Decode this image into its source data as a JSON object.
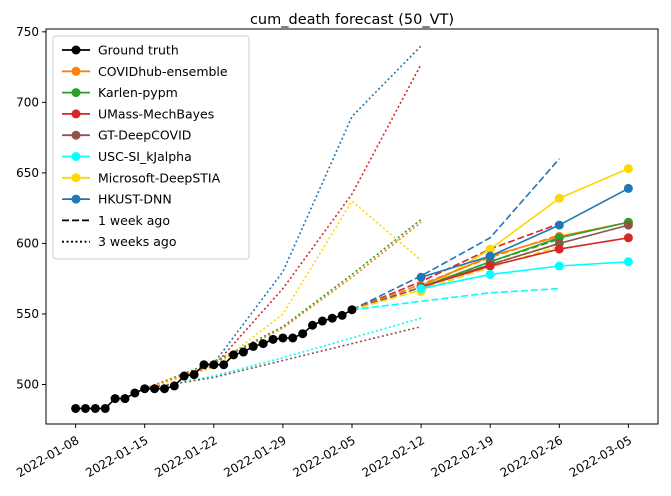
{
  "chart_data": {
    "type": "line",
    "title": "cum_death forecast (50_VT)",
    "xlabel": "",
    "ylabel": "",
    "x_ticks": [
      "2022-01-08",
      "2022-01-15",
      "2022-01-22",
      "2022-01-29",
      "2022-02-05",
      "2022-02-12",
      "2022-02-19",
      "2022-02-26",
      "2022-03-05"
    ],
    "y_ticks": [
      500,
      550,
      600,
      650,
      700,
      750
    ],
    "xlim": [
      "2022-01-05",
      "2022-03-08"
    ],
    "ylim": [
      472,
      752
    ],
    "grid": false,
    "legend_position": "top-left",
    "legend": [
      {
        "label": "Ground truth",
        "color": "#000000",
        "style": "solid",
        "marker": true
      },
      {
        "label": "COVIDhub-ensemble",
        "color": "#ff7f0e",
        "style": "solid",
        "marker": true
      },
      {
        "label": "Karlen-pypm",
        "color": "#2ca02c",
        "style": "solid",
        "marker": true
      },
      {
        "label": "UMass-MechBayes",
        "color": "#d62728",
        "style": "solid",
        "marker": true
      },
      {
        "label": "GT-DeepCOVID",
        "color": "#8c564b",
        "style": "solid",
        "marker": true
      },
      {
        "label": "USC-SI_kJalpha",
        "color": "#00ffff",
        "style": "solid",
        "marker": true
      },
      {
        "label": "Microsoft-DeepSTIA",
        "color": "#ffd700",
        "style": "solid",
        "marker": true
      },
      {
        "label": "HKUST-DNN",
        "color": "#1f77b4",
        "style": "solid",
        "marker": true
      },
      {
        "label": "1 week ago",
        "color": "#000000",
        "style": "dashed",
        "marker": false
      },
      {
        "label": "3 weeks ago",
        "color": "#000000",
        "style": "dotted",
        "marker": false
      }
    ],
    "series": [
      {
        "group": "3 weeks ago",
        "model": "HKUST-DNN",
        "color": "#1f77b4",
        "style": "dotted",
        "marker": false,
        "x": [
          "2022-01-15",
          "2022-01-22",
          "2022-01-29",
          "2022-02-05",
          "2022-02-12"
        ],
        "y": [
          497,
          515,
          580,
          690,
          740
        ]
      },
      {
        "group": "3 weeks ago",
        "model": "UMass-MechBayes",
        "color": "#d62728",
        "style": "dotted",
        "marker": false,
        "x": [
          "2022-01-15",
          "2022-01-22",
          "2022-01-29",
          "2022-02-05",
          "2022-02-12"
        ],
        "y": [
          497,
          513,
          568,
          635,
          727
        ]
      },
      {
        "group": "3 weeks ago",
        "model": "Microsoft-DeepSTIA",
        "color": "#ffd700",
        "style": "dotted",
        "marker": false,
        "x": [
          "2022-01-15",
          "2022-01-22",
          "2022-01-29",
          "2022-02-05",
          "2022-02-12"
        ],
        "y": [
          497,
          512,
          550,
          630,
          588
        ]
      },
      {
        "group": "3 weeks ago",
        "model": "Karlen-pypm",
        "color": "#2ca02c",
        "style": "dotted",
        "marker": false,
        "x": [
          "2022-01-15",
          "2022-01-22",
          "2022-01-29",
          "2022-02-05",
          "2022-02-12"
        ],
        "y": [
          497,
          516,
          541,
          578,
          617
        ]
      },
      {
        "group": "3 weeks ago",
        "model": "COVIDhub-ensemble",
        "color": "#ff7f0e",
        "style": "dotted",
        "marker": false,
        "x": [
          "2022-01-15",
          "2022-01-22",
          "2022-01-29",
          "2022-02-05",
          "2022-02-12"
        ],
        "y": [
          497,
          515,
          540,
          576,
          615
        ]
      },
      {
        "group": "3 weeks ago",
        "model": "USC-SI_kJalpha",
        "color": "#00ffff",
        "style": "dotted",
        "marker": false,
        "x": [
          "2022-01-15",
          "2022-01-22",
          "2022-01-29",
          "2022-02-05",
          "2022-02-12"
        ],
        "y": [
          497,
          506,
          519,
          533,
          547
        ]
      },
      {
        "group": "3 weeks ago",
        "model": "GT-DeepCOVID",
        "color": "#8c564b",
        "style": "dotted",
        "marker": false,
        "x": [
          "2022-01-15",
          "2022-01-22",
          "2022-01-29",
          "2022-02-05",
          "2022-02-12"
        ],
        "y": [
          497,
          505,
          517,
          529,
          541
        ]
      },
      {
        "group": "1 week ago",
        "model": "HKUST-DNN",
        "color": "#1f77b4",
        "style": "dashed",
        "marker": false,
        "x": [
          "2022-02-05",
          "2022-02-12",
          "2022-02-19",
          "2022-02-26"
        ],
        "y": [
          553,
          577,
          604,
          660
        ]
      },
      {
        "group": "1 week ago",
        "model": "UMass-MechBayes",
        "color": "#d62728",
        "style": "dashed",
        "marker": false,
        "x": [
          "2022-02-05",
          "2022-02-12",
          "2022-02-19",
          "2022-02-26"
        ],
        "y": [
          553,
          573,
          596,
          614
        ]
      },
      {
        "group": "1 week ago",
        "model": "COVIDhub-ensemble",
        "color": "#ff7f0e",
        "style": "dashed",
        "marker": false,
        "x": [
          "2022-02-05",
          "2022-02-12",
          "2022-02-19",
          "2022-02-26"
        ],
        "y": [
          553,
          571,
          590,
          606
        ]
      },
      {
        "group": "1 week ago",
        "model": "Karlen-pypm",
        "color": "#2ca02c",
        "style": "dashed",
        "marker": false,
        "x": [
          "2022-02-05",
          "2022-02-12",
          "2022-02-19",
          "2022-02-26"
        ],
        "y": [
          553,
          569,
          587,
          603
        ]
      },
      {
        "group": "1 week ago",
        "model": "GT-DeepCOVID",
        "color": "#8c564b",
        "style": "dashed",
        "marker": false,
        "x": [
          "2022-02-05",
          "2022-02-12",
          "2022-02-19",
          "2022-02-26"
        ],
        "y": [
          553,
          569,
          585,
          600
        ]
      },
      {
        "group": "1 week ago",
        "model": "Microsoft-DeepSTIA",
        "color": "#ffd700",
        "style": "dashed",
        "marker": false,
        "x": [
          "2022-02-05",
          "2022-02-12",
          "2022-02-19",
          "2022-02-26"
        ],
        "y": [
          553,
          567,
          583,
          598
        ]
      },
      {
        "group": "1 week ago",
        "model": "USC-SI_kJalpha",
        "color": "#00ffff",
        "style": "dashed",
        "marker": false,
        "x": [
          "2022-02-05",
          "2022-02-12",
          "2022-02-19",
          "2022-02-26"
        ],
        "y": [
          553,
          559,
          565,
          568
        ]
      },
      {
        "group": "current",
        "model": "Microsoft-DeepSTIA",
        "color": "#ffd700",
        "style": "solid",
        "marker": true,
        "x": [
          "2022-02-12",
          "2022-02-19",
          "2022-02-26",
          "2022-03-05"
        ],
        "y": [
          566,
          596,
          632,
          653
        ]
      },
      {
        "group": "current",
        "model": "COVIDhub-ensemble",
        "color": "#ff7f0e",
        "style": "solid",
        "marker": true,
        "x": [
          "2022-02-12",
          "2022-02-19",
          "2022-02-26",
          "2022-03-05"
        ],
        "y": [
          570,
          591,
          605,
          615
        ]
      },
      {
        "group": "current",
        "model": "Karlen-pypm",
        "color": "#2ca02c",
        "style": "solid",
        "marker": true,
        "x": [
          "2022-02-12",
          "2022-02-19",
          "2022-02-26",
          "2022-03-05"
        ],
        "y": [
          569,
          587,
          604,
          615
        ]
      },
      {
        "group": "current",
        "model": "GT-DeepCOVID",
        "color": "#8c564b",
        "style": "solid",
        "marker": true,
        "x": [
          "2022-02-12",
          "2022-02-19",
          "2022-02-26",
          "2022-03-05"
        ],
        "y": [
          569,
          585,
          600,
          613
        ]
      },
      {
        "group": "current",
        "model": "UMass-MechBayes",
        "color": "#d62728",
        "style": "solid",
        "marker": true,
        "x": [
          "2022-02-12",
          "2022-02-19",
          "2022-02-26",
          "2022-03-05"
        ],
        "y": [
          569,
          584,
          596,
          604
        ]
      },
      {
        "group": "current",
        "model": "USC-SI_kJalpha",
        "color": "#00ffff",
        "style": "solid",
        "marker": true,
        "x": [
          "2022-02-12",
          "2022-02-19",
          "2022-02-26",
          "2022-03-05"
        ],
        "y": [
          568,
          578,
          584,
          587
        ]
      },
      {
        "group": "current",
        "model": "HKUST-DNN",
        "color": "#1f77b4",
        "style": "solid",
        "marker": true,
        "x": [
          "2022-02-12",
          "2022-02-19",
          "2022-02-26",
          "2022-03-05"
        ],
        "y": [
          576,
          591,
          613,
          639
        ]
      },
      {
        "group": "truth",
        "model": "Ground truth",
        "color": "#000000",
        "style": "solid",
        "marker": true,
        "x": [
          "2022-01-08",
          "2022-01-09",
          "2022-01-10",
          "2022-01-11",
          "2022-01-12",
          "2022-01-13",
          "2022-01-14",
          "2022-01-15",
          "2022-01-16",
          "2022-01-17",
          "2022-01-18",
          "2022-01-19",
          "2022-01-20",
          "2022-01-21",
          "2022-01-22",
          "2022-01-23",
          "2022-01-24",
          "2022-01-25",
          "2022-01-26",
          "2022-01-27",
          "2022-01-28",
          "2022-01-29",
          "2022-01-30",
          "2022-01-31",
          "2022-02-01",
          "2022-02-02",
          "2022-02-03",
          "2022-02-04",
          "2022-02-05"
        ],
        "y": [
          483,
          483,
          483,
          483,
          490,
          490,
          494,
          497,
          497,
          497,
          499,
          506,
          507,
          514,
          514,
          514,
          521,
          523,
          527,
          529,
          532,
          533,
          533,
          536,
          542,
          545,
          547,
          549,
          553
        ]
      }
    ]
  }
}
